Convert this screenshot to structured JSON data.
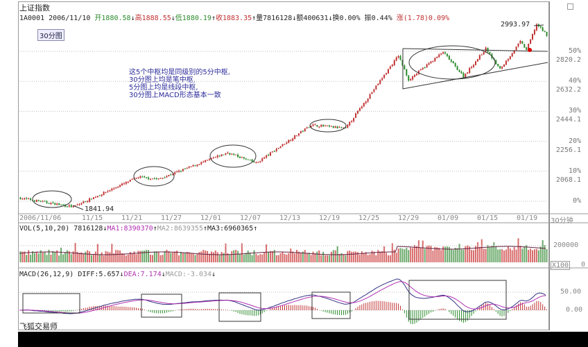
{
  "header": {
    "index_name": "上证指数",
    "code": "1A0001",
    "date": "2006/11/10",
    "open_label": "开",
    "open": "1880.58",
    "open_arrow": "↓",
    "high_label": "高",
    "high": "1888.55",
    "high_arrow": "↓",
    "low_label": "低",
    "low": "1880.19",
    "low_arrow": "↑",
    "close_label": "收",
    "close": "1883.35",
    "close_arrow": "↑",
    "volume_label": "量",
    "volume": "7816128",
    "volume_arrow": "↓",
    "amount_label": "额",
    "amount": "400631",
    "amount_arrow": "↓",
    "turnover_label": "换",
    "turnover": "0.00%",
    "amplitude_label": "振",
    "amplitude": "0.44%",
    "change_label": "涨",
    "change": "(1.78)0.09%"
  },
  "period_badge": "30分图",
  "annotation": [
    "这5个中枢均是同级别的5分中枢,",
    "30分图上均是笔中枢,",
    "5分图上均是线段中枢,",
    "30分图上MACD形态基本一致"
  ],
  "price_labels": {
    "max": "2993.97",
    "min": "1841.94"
  },
  "right_axis": [
    {
      "pct": "50%",
      "price": "2820.2"
    },
    {
      "pct": "40%",
      "price": "2632.2"
    },
    {
      "pct": "30%",
      "price": "2444.1"
    },
    {
      "pct": "20%",
      "price": "2256.1"
    },
    {
      "pct": "10%",
      "price": "2068.1"
    },
    {
      "pct": "0%",
      "price": ""
    }
  ],
  "date_axis": [
    "2006/11/06",
    "11/15",
    "11/21",
    "11/27",
    "12/01",
    "12/07",
    "12/13",
    "12/19",
    "12/25",
    "12/29",
    "01/09",
    "01/15",
    "01/19"
  ],
  "period_label": "30分钟",
  "volume": {
    "title": "VOL(5,10,20)",
    "value": "7816128",
    "value_arrow": "↓",
    "ma1": "MA1:8390370",
    "ma1_arrow": "↑",
    "ma2": "MA2:8639355",
    "ma2_arrow": "↑",
    "ma3": "MA3:6960365",
    "ma3_arrow": "↑",
    "axis_label": "200000",
    "unit": "X100",
    "zero": "0"
  },
  "macd": {
    "title": "MACD(26,12,9)",
    "diff": "DIFF:5.657",
    "diff_arrow": "↓",
    "dea": "DEA:7.174",
    "dea_arrow": "↓",
    "macd": "MACD:-3.034",
    "macd_arrow": "↓",
    "axis": [
      "50.00",
      "0.00"
    ]
  },
  "watermark": "飞狐交易师",
  "colors": {
    "up": "#c03030",
    "down": "#2a8a2a",
    "ma": "#b030b0",
    "diff": "#303080",
    "annotation": "#2a2a9a"
  },
  "chart_data": {
    "type": "candlestick",
    "bars": 260,
    "price_base": 1880.1,
    "price_range": [
      1841.94,
      2993.97
    ],
    "close_waypoints": [
      [
        0,
        1902
      ],
      [
        27,
        1845
      ],
      [
        59,
        2032
      ],
      [
        69,
        2019
      ],
      [
        103,
        2185
      ],
      [
        117,
        2119
      ],
      [
        144,
        2359
      ],
      [
        161,
        2337
      ],
      [
        187,
        2794
      ],
      [
        192,
        2642
      ],
      [
        209,
        2816
      ],
      [
        219,
        2663
      ],
      [
        230,
        2837
      ],
      [
        237,
        2707
      ],
      [
        247,
        2881
      ],
      [
        250,
        2829
      ],
      [
        255,
        2990
      ],
      [
        260,
        2924
      ]
    ],
    "macd_range": [
      -30,
      80
    ],
    "grid": true
  }
}
